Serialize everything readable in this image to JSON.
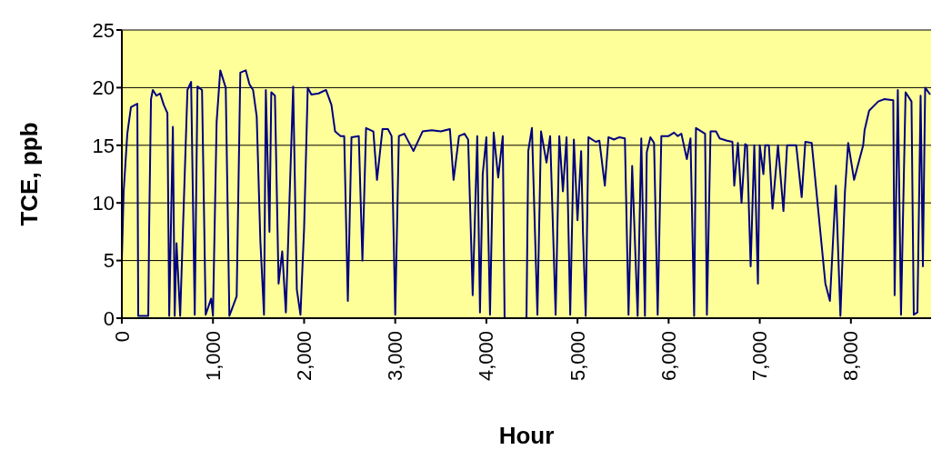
{
  "chart_data": {
    "type": "line",
    "xlabel": "Hour",
    "ylabel": "TCE, ppb",
    "xlim": [
      0,
      8880
    ],
    "ylim": [
      0,
      25
    ],
    "xticks": [
      {
        "value": 0,
        "label": "0"
      },
      {
        "value": 1000,
        "label": "1,000"
      },
      {
        "value": 2000,
        "label": "2,000"
      },
      {
        "value": 3000,
        "label": "3,000"
      },
      {
        "value": 4000,
        "label": "4,000"
      },
      {
        "value": 5000,
        "label": "5,000"
      },
      {
        "value": 6000,
        "label": "6,000"
      },
      {
        "value": 7000,
        "label": "7,000"
      },
      {
        "value": 8000,
        "label": "8,000"
      }
    ],
    "yticks": [
      0,
      5,
      10,
      15,
      20,
      25
    ],
    "grid": "y",
    "marker": "none",
    "line_style": "solid",
    "legend": false,
    "x": [
      0,
      20,
      60,
      100,
      170,
      180,
      290,
      300,
      320,
      340,
      380,
      420,
      460,
      500,
      520,
      560,
      580,
      600,
      640,
      720,
      760,
      800,
      830,
      880,
      920,
      980,
      1000,
      1040,
      1080,
      1140,
      1180,
      1260,
      1300,
      1360,
      1400,
      1440,
      1480,
      1520,
      1560,
      1580,
      1620,
      1640,
      1680,
      1720,
      1760,
      1800,
      1880,
      1920,
      1960,
      2000,
      2040,
      2080,
      2160,
      2240,
      2300,
      2340,
      2400,
      2440,
      2480,
      2520,
      2600,
      2640,
      2680,
      2760,
      2800,
      2860,
      2920,
      2960,
      3000,
      3040,
      3100,
      3200,
      3300,
      3400,
      3500,
      3600,
      3640,
      3700,
      3760,
      3800,
      3850,
      3900,
      3930,
      3960,
      4000,
      4040,
      4080,
      4130,
      4180,
      4200,
      4440,
      4460,
      4500,
      4560,
      4600,
      4660,
      4700,
      4760,
      4800,
      4840,
      4880,
      4920,
      4960,
      5000,
      5040,
      5060,
      5090,
      5120,
      5200,
      5240,
      5300,
      5340,
      5400,
      5460,
      5520,
      5560,
      5600,
      5660,
      5700,
      5740,
      5760,
      5800,
      5840,
      5880,
      5920,
      6000,
      6060,
      6100,
      6140,
      6200,
      6240,
      6280,
      6300,
      6360,
      6400,
      6420,
      6460,
      6520,
      6560,
      6600,
      6640,
      6700,
      6720,
      6760,
      6800,
      6840,
      6860,
      6900,
      6940,
      6980,
      7000,
      7040,
      7060,
      7100,
      7140,
      7200,
      7260,
      7300,
      7400,
      7460,
      7500,
      7570,
      7720,
      7770,
      7835,
      7885,
      7935,
      7970,
      8035,
      8135,
      8150,
      8200,
      8300,
      8365,
      8465,
      8480,
      8515,
      8550,
      8600,
      8665,
      8690,
      8730,
      8765,
      8790,
      8815,
      8870
    ],
    "series": [
      {
        "color": "#000080",
        "values": [
          5,
          11,
          16,
          18.3,
          18.6,
          0.2,
          0.2,
          8,
          19,
          19.8,
          19.3,
          19.5,
          18.5,
          17.8,
          0.2,
          16.6,
          0.2,
          6.5,
          0.2,
          19.8,
          20.5,
          0.3,
          20.1,
          19.8,
          0.3,
          1.7,
          0.2,
          17,
          21.5,
          20,
          0.2,
          1.9,
          21.3,
          21.5,
          20.3,
          19.8,
          17.5,
          6.7,
          0.3,
          19.8,
          7.5,
          19.6,
          19.3,
          3,
          5.8,
          0.5,
          20.1,
          2.5,
          0.3,
          7.8,
          20,
          19.4,
          19.5,
          19.8,
          18.5,
          16.2,
          15.8,
          15.8,
          1.5,
          15.7,
          15.8,
          5,
          16.5,
          16.2,
          12,
          16.4,
          16.4,
          15.8,
          0.3,
          15.8,
          16,
          14.5,
          16.2,
          16.3,
          16.2,
          16.4,
          12,
          15.8,
          16,
          15.5,
          2,
          15.8,
          0.5,
          12.5,
          15.7,
          0.3,
          16.1,
          12.2,
          15.8,
          0,
          0,
          14.5,
          16.5,
          0.3,
          16.2,
          13.5,
          15.8,
          0.3,
          15.8,
          11,
          15.7,
          0.3,
          15.5,
          8.5,
          14.5,
          7.5,
          0.2,
          15.7,
          15.3,
          15.4,
          11.5,
          15.7,
          15.5,
          15.7,
          15.6,
          0.3,
          13.2,
          0.2,
          15.6,
          0.2,
          14.4,
          15.7,
          15.2,
          0.3,
          15.8,
          15.8,
          16.1,
          15.8,
          16,
          13.8,
          15.6,
          0.2,
          16.5,
          16.2,
          16,
          0.3,
          16.2,
          16.2,
          15.6,
          15.5,
          15.4,
          15.3,
          11.5,
          15.2,
          10,
          15.1,
          15,
          4.5,
          15,
          3,
          15,
          12.5,
          15,
          15,
          9.5,
          15,
          9.3,
          15,
          15,
          10.5,
          15.3,
          15.2,
          3,
          1.5,
          11.5,
          0.2,
          11,
          15.2,
          12,
          15,
          16.3,
          18,
          18.8,
          19,
          18.9,
          2,
          19.8,
          0.3,
          19.6,
          18.8,
          0.3,
          0.5,
          19.3,
          4.5,
          20,
          19.4
        ]
      }
    ]
  }
}
